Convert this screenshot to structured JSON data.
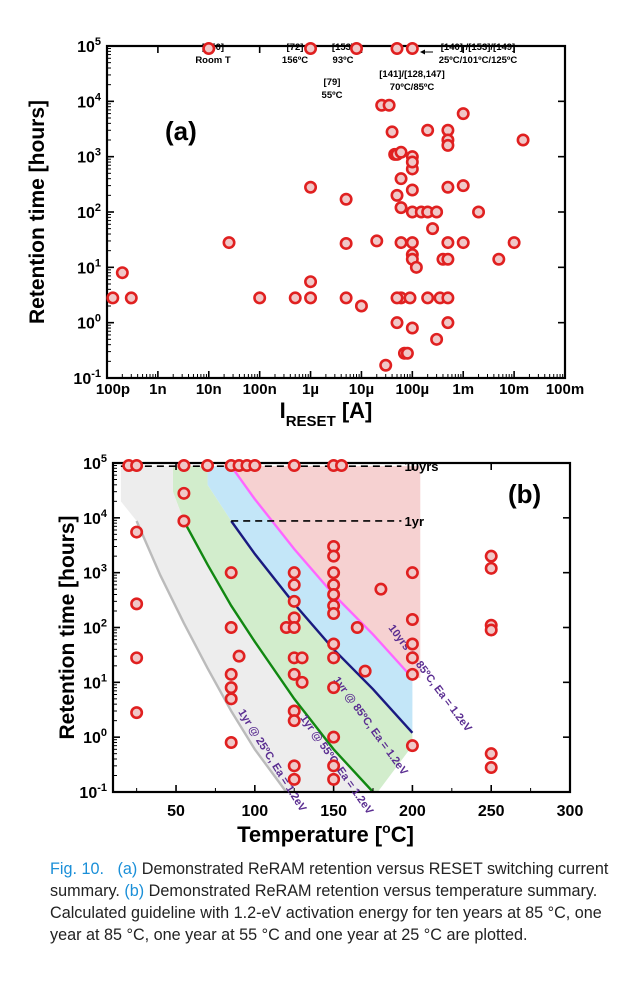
{
  "chart_data": [
    {
      "panel": "(a)",
      "type": "scatter",
      "xlabel_main": "I",
      "xlabel_sub": "RESET",
      "xlabel_unit": "[A]",
      "ylabel": "Retention time [hours]",
      "xscale": "log",
      "yscale": "log",
      "xlim": [
        1e-10,
        0.1
      ],
      "ylim": [
        0.1,
        100000
      ],
      "xticks": [
        {
          "v": 1e-10,
          "label": "100p"
        },
        {
          "v": 1e-09,
          "label": "1n"
        },
        {
          "v": 1e-08,
          "label": "10n"
        },
        {
          "v": 1e-07,
          "label": "100n"
        },
        {
          "v": 1e-06,
          "label": "1µ"
        },
        {
          "v": 1e-05,
          "label": "10µ"
        },
        {
          "v": 0.0001,
          "label": "100µ"
        },
        {
          "v": 0.001,
          "label": "1m"
        },
        {
          "v": 0.01,
          "label": "10m"
        },
        {
          "v": 0.1,
          "label": "100m"
        }
      ],
      "yticks": [
        {
          "v": 0.1,
          "base": "10",
          "exp": "-1"
        },
        {
          "v": 1,
          "base": "10",
          "exp": "0"
        },
        {
          "v": 10,
          "base": "10",
          "exp": "1"
        },
        {
          "v": 100,
          "base": "10",
          "exp": "2"
        },
        {
          "v": 1000,
          "base": "10",
          "exp": "3"
        },
        {
          "v": 10000,
          "base": "10",
          "exp": "4"
        },
        {
          "v": 100000,
          "base": "10",
          "exp": "5"
        }
      ],
      "points": [
        [
          1e-08,
          90000
        ],
        [
          1e-06,
          90000
        ],
        [
          8e-06,
          90000
        ],
        [
          5e-05,
          90000
        ],
        [
          0.0001,
          90000
        ],
        [
          5e-06,
          27
        ],
        [
          2e-10,
          8
        ],
        [
          1.3e-10,
          2.8
        ],
        [
          3e-10,
          2.8
        ],
        [
          2.5e-08,
          28
        ],
        [
          1e-07,
          2.8
        ],
        [
          5e-07,
          2.8
        ],
        [
          1e-06,
          2.8
        ],
        [
          1e-06,
          5.5
        ],
        [
          1e-06,
          280
        ],
        [
          5e-06,
          170
        ],
        [
          1e-05,
          2
        ],
        [
          2e-05,
          30
        ],
        [
          2.5e-05,
          8500
        ],
        [
          3.5e-05,
          8500
        ],
        [
          4e-05,
          2800
        ],
        [
          4.5e-05,
          1100
        ],
        [
          5e-05,
          1100
        ],
        [
          5e-05,
          200
        ],
        [
          6e-05,
          2.8
        ],
        [
          5e-05,
          2.8
        ],
        [
          5e-05,
          1
        ],
        [
          6e-05,
          1200
        ],
        [
          6e-05,
          400
        ],
        [
          6e-05,
          120
        ],
        [
          6e-05,
          28
        ],
        [
          7e-05,
          0.28
        ],
        [
          8e-05,
          0.28
        ],
        [
          3e-05,
          0.17
        ],
        [
          9e-05,
          2.8
        ],
        [
          0.0001,
          0.8
        ],
        [
          0.0001,
          100
        ],
        [
          0.0001,
          28
        ],
        [
          0.0001,
          17
        ],
        [
          0.0001,
          14
        ],
        [
          0.00012,
          10
        ],
        [
          0.0001,
          250
        ],
        [
          0.0001,
          600
        ],
        [
          0.0001,
          1000
        ],
        [
          0.0001,
          800
        ],
        [
          0.00015,
          100
        ],
        [
          0.0002,
          3000
        ],
        [
          0.0002,
          100
        ],
        [
          0.0002,
          2.8
        ],
        [
          0.00025,
          50
        ],
        [
          0.0003,
          100
        ],
        [
          0.0003,
          0.5
        ],
        [
          0.00035,
          2.8
        ],
        [
          0.0004,
          14
        ],
        [
          0.0005,
          3000
        ],
        [
          0.0005,
          2000
        ],
        [
          0.0005,
          1600
        ],
        [
          0.0005,
          280
        ],
        [
          0.0005,
          28
        ],
        [
          0.0005,
          14
        ],
        [
          0.0005,
          2.8
        ],
        [
          0.0005,
          1
        ],
        [
          0.001,
          6000
        ],
        [
          0.001,
          300
        ],
        [
          0.001,
          28
        ],
        [
          0.002,
          100
        ],
        [
          0.005,
          14
        ],
        [
          0.01,
          28
        ],
        [
          0.015,
          2000
        ],
        [
          5e-06,
          2.8
        ]
      ],
      "panel_label": "(a)",
      "annotations": [
        {
          "lines": [
            "[150]",
            "Room T"
          ]
        },
        {
          "lines": [
            "[72]",
            "156ºC"
          ]
        },
        {
          "lines": [
            "[153]",
            "93ºC"
          ]
        },
        {
          "lines": [
            "[79]",
            "55ºC"
          ]
        },
        {
          "lines": [
            "[141]/[128,147]",
            "70ºC/85ºC"
          ]
        },
        {
          "lines": [
            "[140] /[153]/[149]",
            "25ºC/101ºC/125ºC"
          ]
        }
      ]
    },
    {
      "panel": "(b)",
      "type": "scatter",
      "xlabel": "Temperature [",
      "xlabel_sup": "o",
      "xlabel_end": "C]",
      "ylabel": "Retention time [hours]",
      "xscale": "linear",
      "yscale": "log",
      "xlim": [
        10,
        300
      ],
      "ylim": [
        0.1,
        100000
      ],
      "xticks": [
        50,
        100,
        150,
        200,
        250,
        300
      ],
      "yticks": [
        {
          "v": 0.1,
          "base": "10",
          "exp": "-1"
        },
        {
          "v": 1,
          "base": "10",
          "exp": "0"
        },
        {
          "v": 10,
          "base": "10",
          "exp": "1"
        },
        {
          "v": 100,
          "base": "10",
          "exp": "2"
        },
        {
          "v": 1000,
          "base": "10",
          "exp": "3"
        },
        {
          "v": 10000,
          "base": "10",
          "exp": "4"
        },
        {
          "v": 100000,
          "base": "10",
          "exp": "5"
        }
      ],
      "reference_lines": [
        {
          "label": "10yrs",
          "y": 87600
        },
        {
          "label": "1yr",
          "y": 8760
        }
      ],
      "guidelines": [
        {
          "label": "10yrs @ 85ºC, Ea = 1.2eV",
          "color": "#ff66ff",
          "points": [
            [
              85,
              87600
            ],
            [
              100,
              22000
            ],
            [
              125,
              2700
            ],
            [
              150,
              400
            ],
            [
              175,
              75
            ],
            [
              200,
              12
            ]
          ]
        },
        {
          "label": "1yr @ 85ºC, Ea = 1.2eV",
          "color": "#1a1a80",
          "points": [
            [
              85,
              8760
            ],
            [
              100,
              2200
            ],
            [
              125,
              270
            ],
            [
              150,
              40
            ],
            [
              175,
              7.5
            ],
            [
              200,
              1.2
            ]
          ]
        },
        {
          "label": "1yr @ 55ºC, Ea = 1.2eV",
          "color": "#118811",
          "points": [
            [
              55,
              8760
            ],
            [
              70,
              1400
            ],
            [
              85,
              250
            ],
            [
              100,
              55
            ],
            [
              125,
              5
            ],
            [
              150,
              0.6
            ],
            [
              175,
              0.1
            ]
          ]
        },
        {
          "label": "1yr @ 25ºC, Ea = 1.2eV",
          "color": "#bbbbbb",
          "points": [
            [
              25,
              8760
            ],
            [
              40,
              900
            ],
            [
              55,
              120
            ],
            [
              70,
              18
            ],
            [
              85,
              3
            ],
            [
              100,
              0.6
            ],
            [
              120,
              0.1
            ]
          ]
        }
      ],
      "points": [
        [
          20,
          90000
        ],
        [
          25,
          90000
        ],
        [
          55,
          90000
        ],
        [
          70,
          90000
        ],
        [
          85,
          90000
        ],
        [
          90,
          90000
        ],
        [
          95,
          90000
        ],
        [
          100,
          90000
        ],
        [
          125,
          90000
        ],
        [
          150,
          90000
        ],
        [
          155,
          90000
        ],
        [
          55,
          28000
        ],
        [
          55,
          8760
        ],
        [
          25,
          5500
        ],
        [
          25,
          270
        ],
        [
          25,
          28
        ],
        [
          25,
          2.8
        ],
        [
          85,
          1000
        ],
        [
          85,
          100
        ],
        [
          85,
          14
        ],
        [
          85,
          8
        ],
        [
          85,
          5
        ],
        [
          85,
          0.8
        ],
        [
          90,
          30
        ],
        [
          120,
          100
        ],
        [
          125,
          1000
        ],
        [
          125,
          600
        ],
        [
          125,
          300
        ],
        [
          125,
          150
        ],
        [
          125,
          100
        ],
        [
          125,
          28
        ],
        [
          125,
          14
        ],
        [
          125,
          3
        ],
        [
          125,
          2
        ],
        [
          125,
          0.3
        ],
        [
          125,
          0.17
        ],
        [
          130,
          28
        ],
        [
          130,
          10
        ],
        [
          150,
          3000
        ],
        [
          150,
          2000
        ],
        [
          150,
          1000
        ],
        [
          150,
          600
        ],
        [
          150,
          400
        ],
        [
          150,
          250
        ],
        [
          150,
          180
        ],
        [
          150,
          50
        ],
        [
          150,
          28
        ],
        [
          150,
          8
        ],
        [
          150,
          1
        ],
        [
          150,
          0.3
        ],
        [
          150,
          0.17
        ],
        [
          165,
          100
        ],
        [
          170,
          16
        ],
        [
          180,
          500
        ],
        [
          200,
          1000
        ],
        [
          200,
          140
        ],
        [
          200,
          50
        ],
        [
          200,
          28
        ],
        [
          200,
          14
        ],
        [
          200,
          0.7
        ],
        [
          250,
          2000
        ],
        [
          250,
          1200
        ],
        [
          250,
          110
        ],
        [
          250,
          90
        ],
        [
          250,
          0.5
        ],
        [
          250,
          0.28
        ]
      ],
      "panel_label": "(b)"
    }
  ],
  "caption": {
    "figure_label": "Fig. 10.",
    "a_label": "(a)",
    "a_text": " Demonstrated ReRAM retention versus RESET switching current summary. ",
    "b_label": "(b)",
    "b_text": " Demonstrated ReRAM retention versus temperature summary. Calculated guideline with 1.2-eV activation energy for ten years at 85 °C, one year at 85 °C, one year at 55 °C and one year at 25 °C are plotted."
  }
}
